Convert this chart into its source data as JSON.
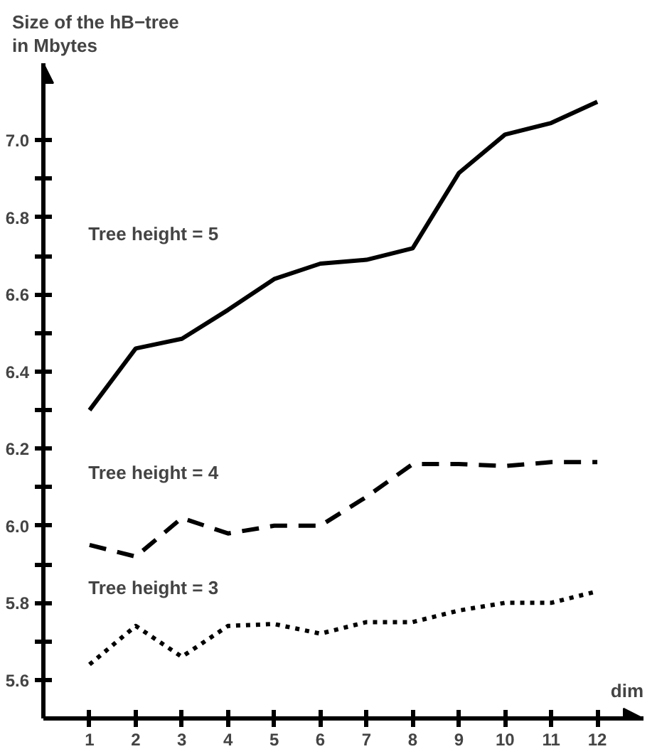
{
  "chart_data": {
    "type": "line",
    "ylabel": "Size of the hB−tree\nin Mbytes",
    "xlabel": "dim",
    "x": [
      1,
      2,
      3,
      4,
      5,
      6,
      7,
      8,
      9,
      10,
      11,
      12
    ],
    "series": [
      {
        "color": "#000000",
        "line_style": "solid",
        "values": [
          6.3,
          6.46,
          6.485,
          6.56,
          6.64,
          6.68,
          6.69,
          6.72,
          6.915,
          7.015,
          7.045,
          7.1
        ]
      },
      {
        "color": "#000000",
        "line_style": "dashed",
        "values": [
          5.95,
          5.92,
          6.02,
          5.98,
          6.0,
          6.0,
          6.075,
          6.16,
          6.16,
          6.155,
          6.165,
          6.165
        ]
      },
      {
        "color": "#000000",
        "line_style": "dotted",
        "values": [
          5.64,
          5.74,
          5.66,
          5.74,
          5.745,
          5.72,
          5.75,
          5.75,
          5.78,
          5.8,
          5.8,
          5.83
        ]
      }
    ],
    "annotations": [
      "Tree height = 5",
      "Tree height = 4",
      "Tree height = 3"
    ],
    "xlim": [
      0,
      13
    ],
    "ylim": [
      5.5,
      7.2
    ],
    "xticks": [
      1,
      2,
      3,
      4,
      5,
      6,
      7,
      8,
      9,
      10,
      11,
      12
    ],
    "yticks": [
      5.6,
      {
        "value": 5.7,
        "label": null
      },
      5.8,
      {
        "value": 5.9,
        "label": null
      },
      {
        "value": 6.0,
        "label": "6.0"
      },
      {
        "value": 6.1,
        "label": null
      },
      6.2,
      {
        "value": 6.3,
        "label": null
      },
      6.4,
      {
        "value": 6.5,
        "label": null
      },
      6.6,
      {
        "value": 6.7,
        "label": null
      },
      6.8,
      {
        "value": 6.9,
        "label": null
      },
      {
        "value": 7.0,
        "label": "7.0"
      }
    ],
    "grid": false,
    "marker": "none"
  }
}
